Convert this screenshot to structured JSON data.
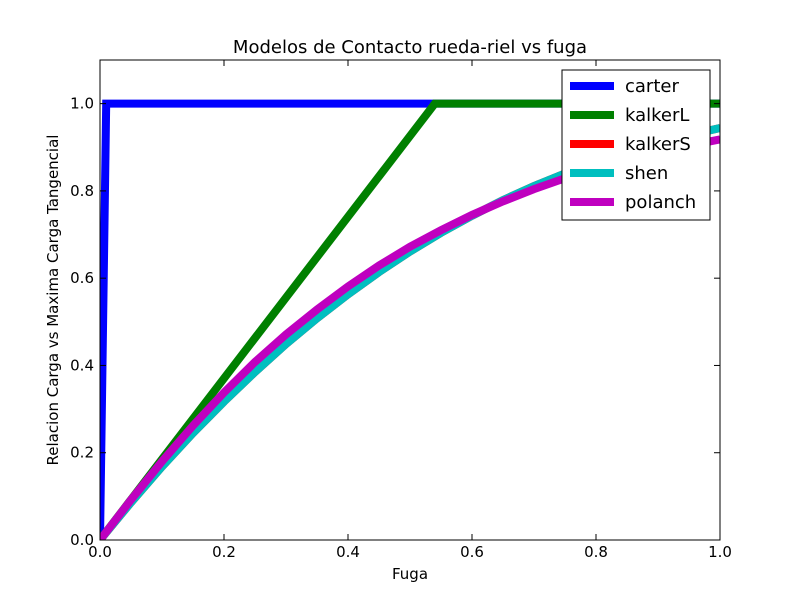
{
  "chart_data": {
    "type": "line",
    "title": "Modelos de Contacto rueda-riel vs fuga",
    "xlabel": "Fuga",
    "ylabel": "Relacion Carga vs Maxima Carga Tangencial",
    "xlim": [
      0,
      1
    ],
    "ylim": [
      0,
      1.1
    ],
    "xticks": [
      "0.0",
      "0.2",
      "0.4",
      "0.6",
      "0.8",
      "1.0"
    ],
    "yticks": [
      "0.0",
      "0.2",
      "0.4",
      "0.6",
      "0.8",
      "1.0"
    ],
    "grid": false,
    "legend_position": "top-right",
    "series": [
      {
        "name": "carter",
        "color": "#0000ff",
        "x": [
          0,
          0.01,
          1.0
        ],
        "y": [
          0,
          1.0,
          1.0
        ]
      },
      {
        "name": "kalkerL",
        "color": "#008000",
        "x": [
          0,
          0.54,
          1.0
        ],
        "y": [
          0,
          1.0,
          1.0
        ]
      },
      {
        "name": "kalkerS",
        "color": "#ff0000",
        "x": [
          0,
          0.05,
          0.1,
          0.15,
          0.2,
          0.25,
          0.3,
          0.35,
          0.4,
          0.45,
          0.5,
          0.55,
          0.6,
          0.65,
          0.7,
          0.75,
          0.8,
          0.85,
          0.9,
          0.95,
          1.0
        ],
        "y": [
          0,
          0.086,
          0.168,
          0.245,
          0.317,
          0.385,
          0.449,
          0.508,
          0.563,
          0.614,
          0.661,
          0.704,
          0.743,
          0.779,
          0.811,
          0.84,
          0.866,
          0.889,
          0.91,
          0.928,
          0.944
        ]
      },
      {
        "name": "shen",
        "color": "#00bfbf",
        "x": [
          0,
          0.05,
          0.1,
          0.15,
          0.2,
          0.25,
          0.3,
          0.35,
          0.4,
          0.45,
          0.5,
          0.55,
          0.6,
          0.65,
          0.7,
          0.75,
          0.8,
          0.85,
          0.9,
          0.95,
          1.0
        ],
        "y": [
          0,
          0.086,
          0.168,
          0.245,
          0.317,
          0.385,
          0.449,
          0.508,
          0.563,
          0.614,
          0.661,
          0.704,
          0.743,
          0.779,
          0.811,
          0.84,
          0.866,
          0.889,
          0.91,
          0.928,
          0.944
        ]
      },
      {
        "name": "polanch",
        "color": "#bf00bf",
        "x": [
          0,
          0.05,
          0.1,
          0.15,
          0.2,
          0.25,
          0.3,
          0.35,
          0.4,
          0.45,
          0.5,
          0.55,
          0.6,
          0.65,
          0.7,
          0.75,
          0.8,
          0.85,
          0.9,
          0.95,
          1.0
        ],
        "y": [
          0,
          0.092,
          0.18,
          0.262,
          0.338,
          0.408,
          0.471,
          0.528,
          0.581,
          0.629,
          0.672,
          0.71,
          0.745,
          0.776,
          0.804,
          0.829,
          0.851,
          0.871,
          0.889,
          0.904,
          0.918
        ]
      }
    ]
  }
}
